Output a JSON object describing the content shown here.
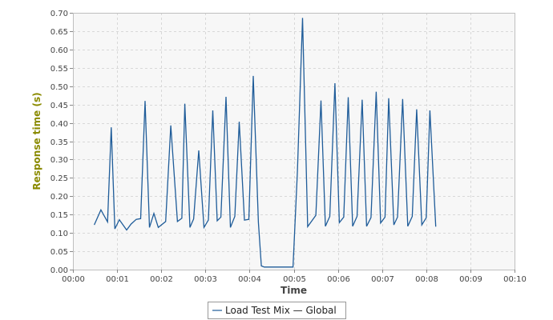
{
  "chart_data": {
    "type": "line",
    "xlabel": "Time",
    "ylabel": "Response time (s)",
    "xlim": [
      0,
      600
    ],
    "ylim": [
      0,
      0.7
    ],
    "x_ticks": [
      0,
      60,
      120,
      180,
      240,
      300,
      360,
      420,
      480,
      540,
      600
    ],
    "x_tick_labels": [
      "00:00",
      "00:01",
      "00:02",
      "00:03",
      "00:04",
      "00:05",
      "00:06",
      "00:07",
      "00:08",
      "00:09",
      "00:10"
    ],
    "y_ticks": [
      0,
      0.05,
      0.1,
      0.15,
      0.2,
      0.25,
      0.3,
      0.35,
      0.4,
      0.45,
      0.5,
      0.55,
      0.6,
      0.65,
      0.7
    ],
    "y_tick_labels": [
      "0.00",
      "0.05",
      "0.10",
      "0.15",
      "0.20",
      "0.25",
      "0.30",
      "0.35",
      "0.40",
      "0.45",
      "0.50",
      "0.55",
      "0.60",
      "0.65",
      "0.70"
    ],
    "grid": true,
    "legend_position": "bottom",
    "series": [
      {
        "name": "Load Test Mix — Global",
        "color": "#1f5c99",
        "x": [
          29,
          38,
          47,
          52,
          57,
          63,
          73,
          79,
          86,
          92,
          98,
          104,
          110,
          116,
          126,
          133,
          142,
          148,
          152,
          159,
          164,
          171,
          178,
          184,
          190,
          196,
          201,
          208,
          214,
          220,
          226,
          233,
          239,
          245,
          252,
          256,
          260,
          271,
          281,
          287,
          299,
          305,
          312,
          319,
          330,
          337,
          343,
          349,
          356,
          362,
          368,
          374,
          380,
          386,
          393,
          399,
          405,
          412,
          418,
          424,
          429,
          436,
          441,
          448,
          455,
          461,
          467,
          474,
          480,
          485,
          493
        ],
        "y": [
          0.122,
          0.163,
          0.13,
          0.388,
          0.111,
          0.136,
          0.108,
          0.124,
          0.137,
          0.139,
          0.46,
          0.115,
          0.153,
          0.115,
          0.131,
          0.393,
          0.131,
          0.14,
          0.452,
          0.115,
          0.138,
          0.325,
          0.115,
          0.135,
          0.434,
          0.133,
          0.143,
          0.471,
          0.115,
          0.145,
          0.403,
          0.135,
          0.137,
          0.528,
          0.129,
          0.01,
          0.007,
          0.007,
          0.007,
          0.007,
          0.007,
          0.268,
          0.686,
          0.117,
          0.148,
          0.461,
          0.118,
          0.145,
          0.508,
          0.128,
          0.143,
          0.47,
          0.118,
          0.145,
          0.463,
          0.118,
          0.142,
          0.485,
          0.127,
          0.143,
          0.467,
          0.122,
          0.143,
          0.465,
          0.118,
          0.145,
          0.437,
          0.122,
          0.141,
          0.434,
          0.117
        ]
      }
    ]
  },
  "legend": {
    "label": "Load Test Mix — Global"
  }
}
